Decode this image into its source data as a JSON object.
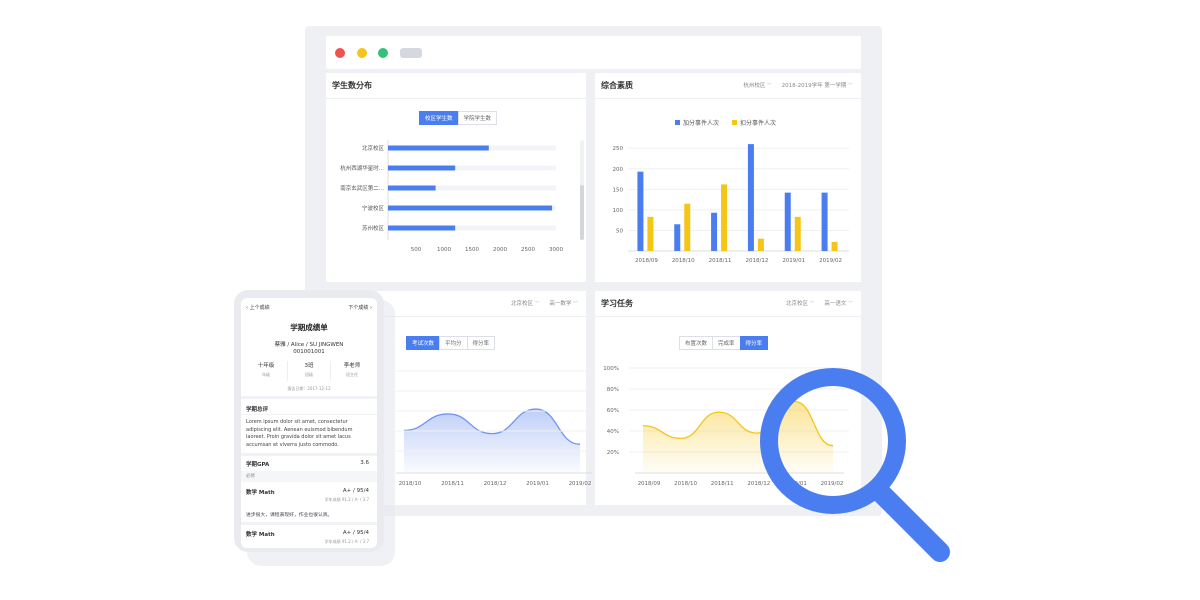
{
  "student_distribution": {
    "title": "学生数分布",
    "toggle": [
      "校区学生数",
      "学院学生数"
    ],
    "chart_data": {
      "type": "bar",
      "orientation": "horizontal",
      "categories": [
        "北京校区",
        "杭州西湖华星时...",
        "南京玄武区第二...",
        "宁波校区",
        "苏州校区"
      ],
      "values": [
        1800,
        1200,
        850,
        2930,
        1200
      ],
      "xlim": [
        0,
        3000
      ],
      "xticks": [
        500,
        1000,
        1500,
        2000,
        2500,
        3000
      ]
    }
  },
  "comprehensive": {
    "title": "综合素质",
    "filters": [
      "杭州校区",
      "2018-2019学年 第一学期"
    ],
    "chart_data": {
      "type": "bar",
      "categories": [
        "2018/09",
        "2018/10",
        "2018/11",
        "2018/12",
        "2019/01",
        "2019/02"
      ],
      "series": [
        {
          "name": "加分事件人次",
          "color": "#4a7ef0",
          "values": [
            193,
            65,
            93,
            260,
            142,
            142
          ]
        },
        {
          "name": "扣分事件人次",
          "color": "#f5c518",
          "values": [
            83,
            115,
            162,
            30,
            83,
            22
          ]
        }
      ],
      "ylim": [
        0,
        270
      ],
      "yticks": [
        50,
        100,
        150,
        200,
        250
      ]
    }
  },
  "exam": {
    "filters": [
      "北京校区",
      "高一数学"
    ],
    "toggle": [
      "考试次数",
      "平均分",
      "得分率"
    ],
    "chart_data": {
      "type": "area",
      "categories": [
        "2018/10",
        "2018/11",
        "2018/12",
        "2019/01",
        "2019/02"
      ],
      "values": [
        0.52,
        0.72,
        0.48,
        0.78,
        0.35
      ],
      "color": "#6f93ef"
    }
  },
  "tasks": {
    "title": "学习任务",
    "filters": [
      "北京校区",
      "高一语文"
    ],
    "toggle": [
      "布置次数",
      "完成率",
      "得分率"
    ],
    "chart_data": {
      "type": "area",
      "categories": [
        "2018/09",
        "2018/10",
        "2018/11",
        "2018/12",
        "2019/01",
        "2019/02"
      ],
      "yticks": [
        "100%",
        "80%",
        "60%",
        "40%",
        "20%"
      ],
      "values": [
        0.45,
        0.33,
        0.58,
        0.38,
        0.68,
        0.26
      ],
      "color": "#f5c518"
    }
  },
  "phone": {
    "nav_prev": "上个成绩",
    "nav_next": "下个成绩",
    "title": "学期成绩单",
    "name": "蔡雅 / Alice / SU JINGWEN",
    "id": "001001001",
    "stats": [
      {
        "value": "十年级",
        "label": "年级"
      },
      {
        "value": "3班",
        "label": "班级"
      },
      {
        "value": "李老师",
        "label": "班主任"
      }
    ],
    "date": "报告日期：2017-12-12",
    "comment_title": "学期总评",
    "comment": "Lorem ipsum dolor sit amet, consectetur adipiscing elit. Aenean euismod bibendum laoreet. Proin gravida dolor sit amet lacus accumsan et viverra justo commodo.",
    "gpa_label": "学期GPA",
    "gpa_value": "3.6",
    "required_label": "必修",
    "courses": [
      {
        "name": "数学 Math",
        "score": "A+ / 95/4",
        "sub": "学年成绩 91.2 / A- / 3.7",
        "note": "进步很大，课程表现好，作业也很认真。"
      },
      {
        "name": "数学 Math",
        "score": "A+ / 95/4",
        "sub": "学年成绩 91.2 / A- / 3.7"
      }
    ]
  }
}
